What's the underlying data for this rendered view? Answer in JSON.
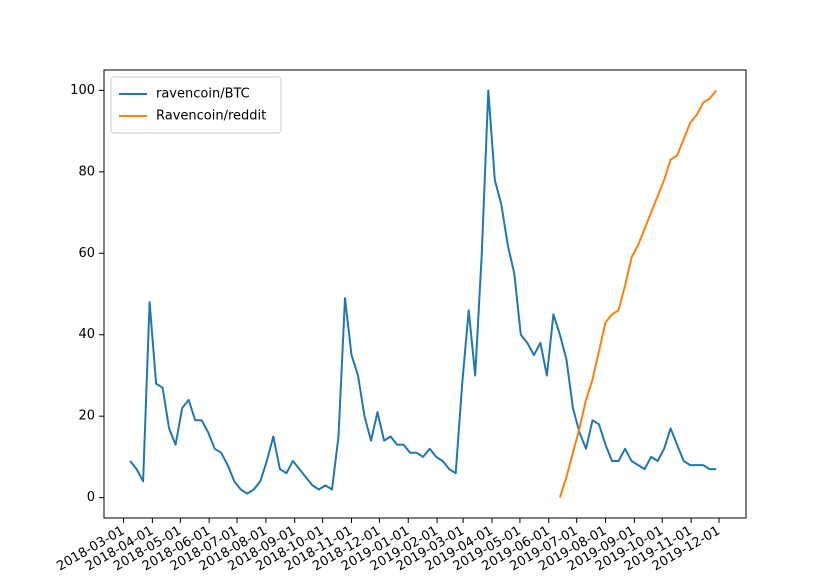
{
  "chart_data": {
    "type": "line",
    "x": [
      "2018-03-08",
      "2018-03-15",
      "2018-03-22",
      "2018-03-29",
      "2018-04-05",
      "2018-04-12",
      "2018-04-19",
      "2018-04-26",
      "2018-05-03",
      "2018-05-10",
      "2018-05-17",
      "2018-05-24",
      "2018-05-31",
      "2018-06-07",
      "2018-06-14",
      "2018-06-21",
      "2018-06-28",
      "2018-07-05",
      "2018-07-12",
      "2018-07-19",
      "2018-07-26",
      "2018-08-02",
      "2018-08-09",
      "2018-08-16",
      "2018-08-23",
      "2018-08-30",
      "2018-09-06",
      "2018-09-13",
      "2018-09-20",
      "2018-09-27",
      "2018-10-04",
      "2018-10-11",
      "2018-10-18",
      "2018-10-25",
      "2018-11-01",
      "2018-11-08",
      "2018-11-15",
      "2018-11-22",
      "2018-11-29",
      "2018-12-06",
      "2018-12-13",
      "2018-12-20",
      "2018-12-27",
      "2019-01-03",
      "2019-01-10",
      "2019-01-17",
      "2019-01-24",
      "2019-01-31",
      "2019-02-07",
      "2019-02-14",
      "2019-02-21",
      "2019-02-28",
      "2019-03-07",
      "2019-03-14",
      "2019-03-21",
      "2019-03-28",
      "2019-04-04",
      "2019-04-11",
      "2019-04-18",
      "2019-04-25",
      "2019-05-02",
      "2019-05-09",
      "2019-05-16",
      "2019-05-23",
      "2019-05-30",
      "2019-06-06",
      "2019-06-13",
      "2019-06-20",
      "2019-06-27",
      "2019-07-04",
      "2019-07-11",
      "2019-07-18",
      "2019-07-25",
      "2019-08-01",
      "2019-08-08",
      "2019-08-15",
      "2019-08-22",
      "2019-08-29",
      "2019-09-05",
      "2019-09-12",
      "2019-09-19",
      "2019-09-26",
      "2019-10-03",
      "2019-10-10",
      "2019-10-17",
      "2019-10-24",
      "2019-10-31",
      "2019-11-07",
      "2019-11-14",
      "2019-11-21",
      "2019-11-28"
    ],
    "series": [
      {
        "name": "ravencoin/BTC",
        "color": "#1f77b4",
        "values": [
          9,
          7,
          4,
          48,
          28,
          27,
          17,
          13,
          22,
          24,
          19,
          19,
          16,
          12,
          11,
          8,
          4,
          2,
          1,
          2,
          4,
          9,
          15,
          7,
          6,
          9,
          7,
          5,
          3,
          2,
          3,
          2,
          15,
          49,
          35,
          30,
          20,
          14,
          21,
          14,
          15,
          13,
          13,
          11,
          11,
          10,
          12,
          10,
          9,
          7,
          6,
          28,
          46,
          30,
          60,
          100,
          78,
          72,
          62,
          55,
          40,
          38,
          35,
          38,
          30,
          45,
          40,
          34,
          22,
          16,
          12,
          19,
          18,
          13,
          9,
          9,
          12,
          9,
          8,
          7,
          10,
          9,
          12,
          17,
          13,
          9,
          8,
          8,
          8,
          7,
          7
        ]
      },
      {
        "name": "Ravencoin/reddit",
        "color": "#ff7f0e",
        "values": [
          null,
          null,
          null,
          null,
          null,
          null,
          null,
          null,
          null,
          null,
          null,
          null,
          null,
          null,
          null,
          null,
          null,
          null,
          null,
          null,
          null,
          null,
          null,
          null,
          null,
          null,
          null,
          null,
          null,
          null,
          null,
          null,
          null,
          null,
          null,
          null,
          null,
          null,
          null,
          null,
          null,
          null,
          null,
          null,
          null,
          null,
          null,
          null,
          null,
          null,
          null,
          null,
          null,
          null,
          null,
          null,
          null,
          null,
          null,
          null,
          null,
          null,
          null,
          null,
          null,
          null,
          0,
          5,
          11,
          17,
          24,
          29,
          36,
          43,
          45,
          46,
          52,
          59,
          62,
          66,
          70,
          74,
          78,
          83,
          84,
          88,
          92,
          94,
          97,
          98,
          100
        ]
      }
    ],
    "xlim": [
      "2018-02-08",
      "2019-12-30"
    ],
    "xticks": [
      "2018-03-01",
      "2018-04-01",
      "2018-05-01",
      "2018-06-01",
      "2018-07-01",
      "2018-08-01",
      "2018-09-01",
      "2018-10-01",
      "2018-11-01",
      "2018-12-01",
      "2019-01-01",
      "2019-02-01",
      "2019-03-01",
      "2019-04-01",
      "2019-05-01",
      "2019-06-01",
      "2019-07-01",
      "2019-08-01",
      "2019-09-01",
      "2019-10-01",
      "2019-11-01",
      "2019-12-01"
    ],
    "ylim": [
      -5,
      105
    ],
    "yticks": [
      0,
      20,
      40,
      60,
      80,
      100
    ],
    "legend": "upper left"
  }
}
